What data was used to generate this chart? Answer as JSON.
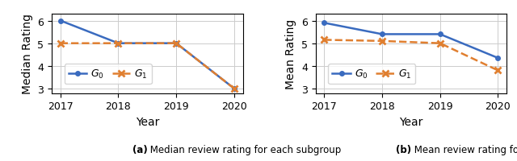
{
  "years": [
    2017,
    2018,
    2019,
    2020
  ],
  "left": {
    "G0": [
      6,
      5,
      5,
      3
    ],
    "G1": [
      5,
      5,
      5,
      3
    ],
    "ylabel": "Median Rating",
    "caption_bold": "(a)",
    "caption_rest": " Median review rating for each subgroup"
  },
  "right": {
    "G0": [
      5.9,
      5.4,
      5.4,
      4.35
    ],
    "G1": [
      5.15,
      5.1,
      5.0,
      3.8
    ],
    "ylabel": "Mean Rating",
    "caption_bold": "(b)",
    "caption_rest": " Mean review rating for each subgroup"
  },
  "G0_color": "#3a6bbf",
  "G1_color": "#e07f30",
  "G0_label": "$G_0$",
  "G1_label": "$G_1$",
  "left_ylim": [
    2.8,
    6.3
  ],
  "right_ylim": [
    2.8,
    6.3
  ],
  "left_yticks": [
    3,
    4,
    5,
    6
  ],
  "right_yticks": [
    3,
    4,
    5,
    6
  ],
  "xlabel": "Year",
  "tick_fontsize": 9,
  "label_fontsize": 10,
  "legend_fontsize": 9,
  "caption_fontsize": 8.5
}
